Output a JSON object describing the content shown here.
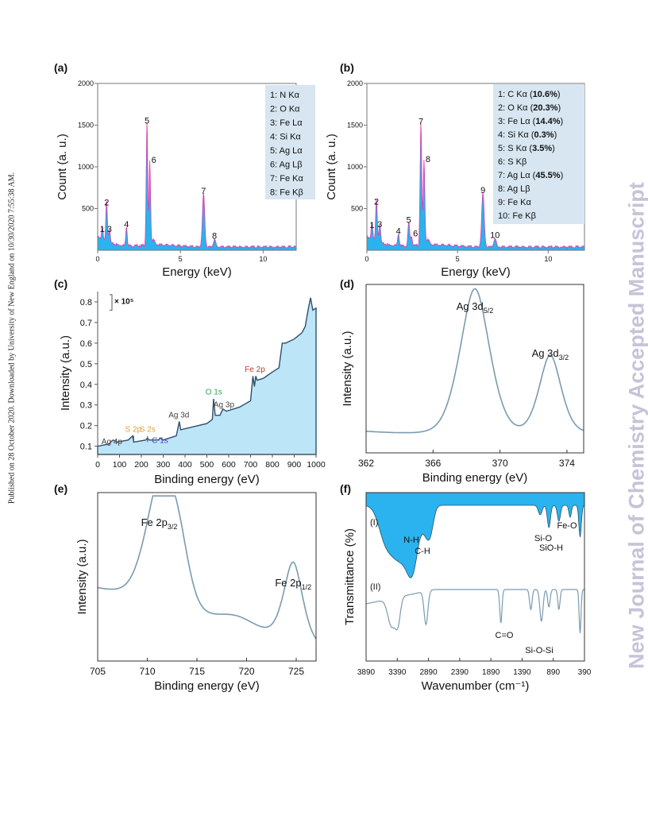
{
  "published_note": "Published on 28 October 2020. Downloaded by University of New England on 10/30/2020 7:55:38 AM.",
  "watermark": "New Journal of Chemistry Accepted Manuscript",
  "colors": {
    "fill": "#2ab3ee",
    "line": "#2f4f6a",
    "pink": "#dd3fae",
    "xps_fill": "#bce5f7",
    "box": "#d7e6f1",
    "trace": "#7a9bb0"
  },
  "chart_data": [
    {
      "panel": "(a)",
      "type": "area",
      "xlabel": "Energy (keV)",
      "ylabel": "Count (a. u.)",
      "xlim": [
        0,
        12
      ],
      "ylim": [
        0,
        2000
      ],
      "xticks": [
        0,
        5,
        10
      ],
      "yticks": [
        500,
        1000,
        1500,
        2000
      ],
      "peaks": [
        {
          "id": "1",
          "x": 0.28,
          "y": 170
        },
        {
          "id": "2",
          "x": 0.54,
          "y": 490
        },
        {
          "id": "3",
          "x": 0.71,
          "y": 170
        },
        {
          "id": "4",
          "x": 1.74,
          "y": 230
        },
        {
          "id": "5",
          "x": 2.98,
          "y": 1470
        },
        {
          "id": "6",
          "x": 3.15,
          "y": 1000
        },
        {
          "id": "7",
          "x": 6.4,
          "y": 630
        },
        {
          "id": "8",
          "x": 7.06,
          "y": 90
        }
      ],
      "legend": [
        "1: N Kα",
        "2: O Kα",
        "3: Fe Lα",
        "4: Si Kα",
        "5: Ag Lα",
        "6: Ag Lβ",
        "7: Fe Kα",
        "8: Fe Kβ"
      ]
    },
    {
      "panel": "(b)",
      "type": "area",
      "xlabel": "Energy (keV)",
      "ylabel": "Count (a. u.)",
      "xlim": [
        0,
        12
      ],
      "ylim": [
        0,
        2000
      ],
      "xticks": [
        0,
        5,
        10
      ],
      "yticks": [
        500,
        1000,
        1500,
        2000
      ],
      "peaks": [
        {
          "id": "1",
          "x": 0.28,
          "y": 220
        },
        {
          "id": "2",
          "x": 0.53,
          "y": 500
        },
        {
          "id": "3",
          "x": 0.71,
          "y": 230
        },
        {
          "id": "4",
          "x": 1.74,
          "y": 150
        },
        {
          "id": "5",
          "x": 2.31,
          "y": 280
        },
        {
          "id": "6",
          "x": 2.46,
          "y": 120
        },
        {
          "id": "7",
          "x": 2.98,
          "y": 1460
        },
        {
          "id": "8",
          "x": 3.15,
          "y": 1010
        },
        {
          "id": "9",
          "x": 6.4,
          "y": 640
        },
        {
          "id": "10",
          "x": 7.06,
          "y": 100
        }
      ],
      "legend": [
        {
          "name": "1: C Kα",
          "pct": "10.6%"
        },
        {
          "name": "2: O Kα",
          "pct": "20.3%"
        },
        {
          "name": "3: Fe Lα",
          "pct": "14.4%"
        },
        {
          "name": "4: Si Kα",
          "pct": "0.3%"
        },
        {
          "name": "5: S Kα",
          "pct": "3.5%"
        },
        {
          "name": "6: S Kβ",
          "pct": ""
        },
        {
          "name": "7: Ag Lα",
          "pct": "45.5%"
        },
        {
          "name": "8: Ag Lβ",
          "pct": ""
        },
        {
          "name": "9: Fe Kα",
          "pct": ""
        },
        {
          "name": "10: Fe Kβ",
          "pct": ""
        }
      ]
    },
    {
      "panel": "(c)",
      "type": "area",
      "xlabel": "Binding energy (eV)",
      "ylabel": "Intensity (a.u.)",
      "scale_note": "× 10⁵",
      "xlim": [
        0,
        1000
      ],
      "ylim": [
        0.06,
        0.85
      ],
      "xticks": [
        0,
        100,
        200,
        300,
        400,
        500,
        600,
        700,
        800,
        900,
        1000
      ],
      "yticks": [
        0.1,
        0.2,
        0.3,
        0.4,
        0.5,
        0.6,
        0.7,
        0.8
      ],
      "curve": [
        [
          0,
          0.1
        ],
        [
          50,
          0.11
        ],
        [
          70,
          0.13
        ],
        [
          90,
          0.12
        ],
        [
          140,
          0.13
        ],
        [
          160,
          0.15
        ],
        [
          165,
          0.12
        ],
        [
          220,
          0.13
        ],
        [
          228,
          0.14
        ],
        [
          235,
          0.13
        ],
        [
          280,
          0.13
        ],
        [
          285,
          0.14
        ],
        [
          300,
          0.13
        ],
        [
          360,
          0.15
        ],
        [
          368,
          0.19
        ],
        [
          374,
          0.22
        ],
        [
          380,
          0.18
        ],
        [
          420,
          0.19
        ],
        [
          500,
          0.21
        ],
        [
          525,
          0.23
        ],
        [
          531,
          0.33
        ],
        [
          538,
          0.25
        ],
        [
          560,
          0.25
        ],
        [
          573,
          0.28
        ],
        [
          590,
          0.27
        ],
        [
          650,
          0.29
        ],
        [
          700,
          0.32
        ],
        [
          711,
          0.44
        ],
        [
          718,
          0.39
        ],
        [
          724,
          0.44
        ],
        [
          730,
          0.42
        ],
        [
          760,
          0.43
        ],
        [
          800,
          0.46
        ],
        [
          830,
          0.48
        ],
        [
          845,
          0.6
        ],
        [
          860,
          0.6
        ],
        [
          900,
          0.62
        ],
        [
          935,
          0.65
        ],
        [
          950,
          0.68
        ],
        [
          965,
          0.77
        ],
        [
          975,
          0.82
        ],
        [
          985,
          0.76
        ],
        [
          1000,
          0.77
        ]
      ],
      "labels": [
        {
          "text": "Ag 4p",
          "x": 65,
          "y": 0.11,
          "color": "#444444"
        },
        {
          "text": "S 2p",
          "x": 163,
          "y": 0.17,
          "color": "#e0a23a"
        },
        {
          "text": "S 2s",
          "x": 228,
          "y": 0.17,
          "color": "#e0a23a"
        },
        {
          "text": "C 1s",
          "x": 285,
          "y": 0.115,
          "color": "#4a3fbf"
        },
        {
          "text": "Ag 3d",
          "x": 372,
          "y": 0.24,
          "color": "#444444"
        },
        {
          "text": "O 1s",
          "x": 532,
          "y": 0.35,
          "color": "#2aa84a"
        },
        {
          "text": "Ag 3p",
          "x": 578,
          "y": 0.29,
          "color": "#444444"
        },
        {
          "text": "Fe 2p",
          "x": 720,
          "y": 0.46,
          "color": "#c0392b"
        }
      ]
    },
    {
      "panel": "(d)",
      "type": "line",
      "xlabel": "Binding energy (eV)",
      "ylabel": "Intensity (a.u.)",
      "xlim": [
        362,
        375
      ],
      "xticks": [
        362,
        366,
        370,
        374
      ],
      "peaks": [
        {
          "label": "Ag 3d",
          "sub": "5/2",
          "x": 368.5,
          "height": 1.0
        },
        {
          "label": "Ag 3d",
          "sub": "3/2",
          "x": 373.0,
          "height": 0.53
        }
      ]
    },
    {
      "panel": "(e)",
      "type": "line",
      "xlabel": "Binding energy (eV)",
      "ylabel": "Intensity (a.u.)",
      "xlim": [
        705,
        727
      ],
      "xticks": [
        705,
        710,
        715,
        720,
        725
      ],
      "peaks": [
        {
          "label": "Fe 2p",
          "sub": "3/2",
          "x": 711.2,
          "height": 0.78
        },
        {
          "label": "Fe 2p",
          "sub": "1/2",
          "x": 724.7,
          "height": 0.52
        }
      ]
    },
    {
      "panel": "(f)",
      "type": "line",
      "xlabel": "Wavenumber (cm⁻¹)",
      "ylabel": "Transmittance (%)",
      "xlim": [
        3890,
        390
      ],
      "xticks": [
        3890,
        3390,
        2890,
        2390,
        1890,
        1390,
        890,
        390
      ],
      "series": [
        {
          "name": "(I)",
          "annotations": [
            "N-H",
            "C-H",
            "Si-O",
            "SiO-H",
            "Fe-O"
          ]
        },
        {
          "name": "(II)",
          "annotations": [
            "C=O",
            "Si-O-Si"
          ]
        }
      ]
    }
  ]
}
